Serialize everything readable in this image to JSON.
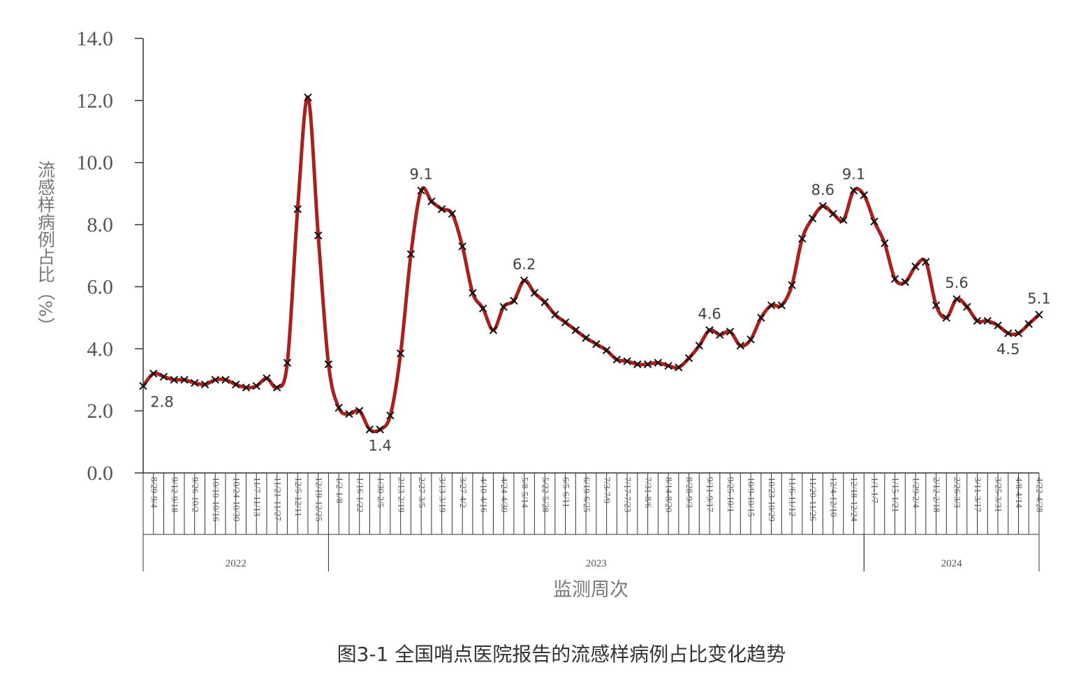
{
  "chart_data": {
    "type": "line",
    "title": "图3-1 全国哨点医院报告的流感样病例占比变化趋势",
    "xlabel": "监测周次",
    "ylabel": "流感样病例占比（%）",
    "ylim": [
      0,
      14
    ],
    "yticks": [
      "0.0",
      "2.0",
      "4.0",
      "6.0",
      "8.0",
      "10.0",
      "12.0",
      "14.0"
    ],
    "grid": false,
    "x_tick_labels": [
      "8/29-9/4",
      "9/12-9/18",
      "9/26-10/2",
      "10/10-10/16",
      "10/24-10/30",
      "11/7-11/13",
      "11/21-11/27",
      "12/5-12/11",
      "12/19-12/25",
      "1/2-1/8",
      "1/16-1/22",
      "1/30-2/5",
      "2/13-2/19",
      "2/27-3/5",
      "3/13-3/19",
      "3/27-4/2",
      "4/10-4/16",
      "4/24-4/30",
      "5/8-5/14",
      "5/22-5/28",
      "6/5-6/11",
      "6/19-6/25",
      "7/3-7/9",
      "7/17-7/23",
      "7/31-8/6",
      "8/14-8/20",
      "8/28-9/3",
      "9/11-9/17",
      "9/25-10/1",
      "10/9-10/15",
      "10/23-10/29",
      "11/6-11/12",
      "11/20-11/26",
      "12/4-12/10",
      "12/18-12/24",
      "1/1-1/7",
      "1/15-1/21",
      "1/29-2/4",
      "2/12-2/18",
      "2/26-3/3",
      "3/11-3/17",
      "3/25-3/31",
      "4/8-4/14",
      "4/22-4/28"
    ],
    "year_groups": [
      {
        "label": "2022",
        "start_week": 0,
        "end_week": 18
      },
      {
        "label": "2023",
        "start_week": 18,
        "end_week": 70
      },
      {
        "label": "2024",
        "start_week": 70,
        "end_week": 87
      }
    ],
    "series": [
      {
        "color": "#a8211c",
        "values": [
          2.8,
          3.2,
          3.1,
          3.0,
          3.0,
          2.9,
          2.85,
          3.0,
          3.0,
          2.85,
          2.75,
          2.8,
          3.05,
          2.75,
          3.55,
          8.5,
          12.1,
          7.65,
          3.5,
          2.1,
          1.9,
          2.0,
          1.4,
          1.4,
          1.85,
          3.85,
          7.05,
          9.1,
          8.75,
          8.5,
          8.35,
          7.3,
          5.8,
          5.3,
          4.6,
          5.35,
          5.55,
          6.2,
          5.8,
          5.5,
          5.1,
          4.85,
          4.6,
          4.35,
          4.15,
          3.95,
          3.65,
          3.6,
          3.5,
          3.5,
          3.55,
          3.45,
          3.4,
          3.7,
          4.1,
          4.6,
          4.45,
          4.55,
          4.1,
          4.3,
          5.0,
          5.4,
          5.4,
          6.05,
          7.55,
          8.2,
          8.6,
          8.35,
          8.15,
          9.1,
          8.95,
          8.1,
          7.4,
          6.25,
          6.15,
          6.65,
          6.8,
          5.4,
          5.0,
          5.6,
          5.35,
          4.9,
          4.9,
          4.75,
          4.5,
          4.5,
          4.8,
          5.1
        ]
      }
    ],
    "annotations": [
      {
        "week": 0,
        "value": 2.8,
        "label": "2.8",
        "pos": "below"
      },
      {
        "week": 23,
        "value": 1.4,
        "label": "1.4",
        "pos": "below"
      },
      {
        "week": 27,
        "value": 9.1,
        "label": "9.1",
        "pos": "above"
      },
      {
        "week": 37,
        "value": 6.2,
        "label": "6.2",
        "pos": "above"
      },
      {
        "week": 55,
        "value": 4.6,
        "label": "4.6",
        "pos": "above"
      },
      {
        "week": 66,
        "value": 8.6,
        "label": "8.6",
        "pos": "above"
      },
      {
        "week": 69,
        "value": 9.1,
        "label": "9.1",
        "pos": "above"
      },
      {
        "week": 79,
        "value": 5.6,
        "label": "5.6",
        "pos": "above"
      },
      {
        "week": 84,
        "value": 4.5,
        "label": "4.5",
        "pos": "below"
      },
      {
        "week": 87,
        "value": 5.1,
        "label": "5.1",
        "pos": "above"
      }
    ]
  }
}
